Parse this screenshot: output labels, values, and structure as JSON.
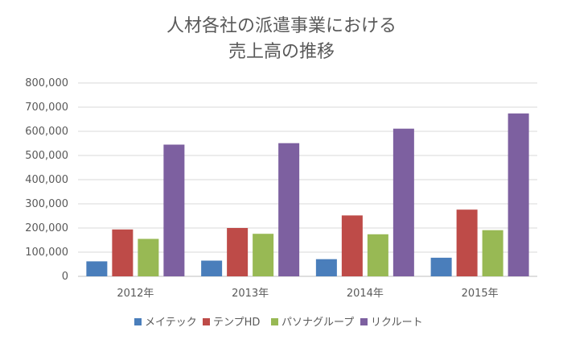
{
  "chart_data": {
    "type": "bar",
    "title": [
      "人材各社の派遣事業における",
      "売上高の推移"
    ],
    "categories": [
      "2012年",
      "2013年",
      "2014年",
      "2015年"
    ],
    "series": [
      {
        "name": "メイテック",
        "color": "#4a7ebb",
        "values": [
          62000,
          65000,
          71000,
          77000
        ]
      },
      {
        "name": "テンプHD",
        "color": "#be4b48",
        "values": [
          194000,
          200000,
          252000,
          276000
        ]
      },
      {
        "name": "パソナグループ",
        "color": "#98b954",
        "values": [
          155000,
          176000,
          174000,
          191000
        ]
      },
      {
        "name": "リクルート",
        "color": "#7d60a0",
        "values": [
          545000,
          551000,
          611000,
          674000
        ]
      }
    ],
    "ylim": [
      0,
      800000
    ],
    "yticks": [
      "0",
      "100,000",
      "200,000",
      "300,000",
      "400,000",
      "500,000",
      "600,000",
      "700,000",
      "800,000"
    ],
    "grid": true,
    "legend": "bottom"
  }
}
